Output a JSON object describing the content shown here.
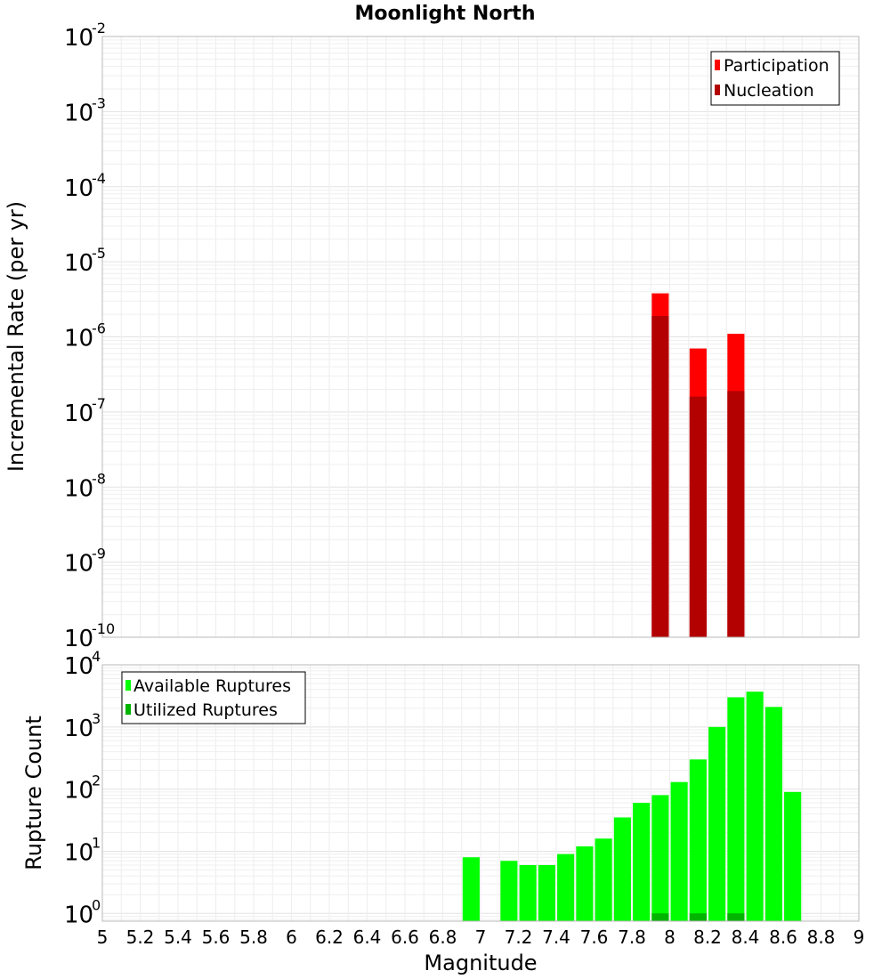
{
  "chart_data": {
    "title": "Moonlight North",
    "xlabel": "Magnitude",
    "xlim": [
      5,
      9
    ],
    "x_ticks": [
      "5",
      "5.2",
      "5.4",
      "5.6",
      "5.8",
      "6",
      "6.2",
      "6.4",
      "6.6",
      "6.8",
      "7",
      "7.2",
      "7.4",
      "7.6",
      "7.8",
      "8",
      "8.2",
      "8.4",
      "8.6",
      "8.8",
      "9"
    ],
    "panels": [
      {
        "type": "bar",
        "ylabel": "Incremental Rate (per yr)",
        "yscale": "log",
        "ylim": [
          1e-10,
          0.01
        ],
        "y_ticks": [
          {
            "base": "10",
            "exp": "-10"
          },
          {
            "base": "10",
            "exp": "-9"
          },
          {
            "base": "10",
            "exp": "-8"
          },
          {
            "base": "10",
            "exp": "-7"
          },
          {
            "base": "10",
            "exp": "-6"
          },
          {
            "base": "10",
            "exp": "-5"
          },
          {
            "base": "10",
            "exp": "-4"
          },
          {
            "base": "10",
            "exp": "-3"
          },
          {
            "base": "10",
            "exp": "-2"
          }
        ],
        "grid": true,
        "legend_position": "top-right",
        "bar_width": 0.09,
        "series": [
          {
            "name": "Participation",
            "color": "#ff0000",
            "x": [
              7.95,
              8.15,
              8.35
            ],
            "values": [
              3.8e-06,
              7e-07,
              1.1e-06
            ]
          },
          {
            "name": "Nucleation",
            "color": "#b30000",
            "x": [
              7.95,
              8.15,
              8.35
            ],
            "values": [
              1.9e-06,
              1.6e-07,
              1.9e-07
            ]
          }
        ]
      },
      {
        "type": "bar",
        "ylabel": "Rupture Count",
        "yscale": "log",
        "ylim": [
          0.75,
          10000
        ],
        "y_ticks": [
          {
            "base": "10",
            "exp": "0"
          },
          {
            "base": "10",
            "exp": "1"
          },
          {
            "base": "10",
            "exp": "2"
          },
          {
            "base": "10",
            "exp": "3"
          },
          {
            "base": "10",
            "exp": "4"
          }
        ],
        "grid": true,
        "legend_position": "top-left",
        "bar_width": 0.09,
        "series": [
          {
            "name": "Available Ruptures",
            "color": "#00ff00",
            "x": [
              6.95,
              7.15,
              7.25,
              7.35,
              7.45,
              7.55,
              7.65,
              7.75,
              7.85,
              7.95,
              8.05,
              8.15,
              8.25,
              8.35,
              8.45,
              8.55,
              8.65
            ],
            "values": [
              8,
              7,
              6,
              6,
              9,
              12,
              16,
              35,
              60,
              80,
              130,
              300,
              1000,
              3000,
              3700,
              2100,
              90
            ]
          },
          {
            "name": "Utilized Ruptures",
            "color": "#00b400",
            "x": [
              7.95,
              8.15,
              8.35
            ],
            "values": [
              1,
              1,
              1
            ]
          }
        ]
      }
    ]
  }
}
